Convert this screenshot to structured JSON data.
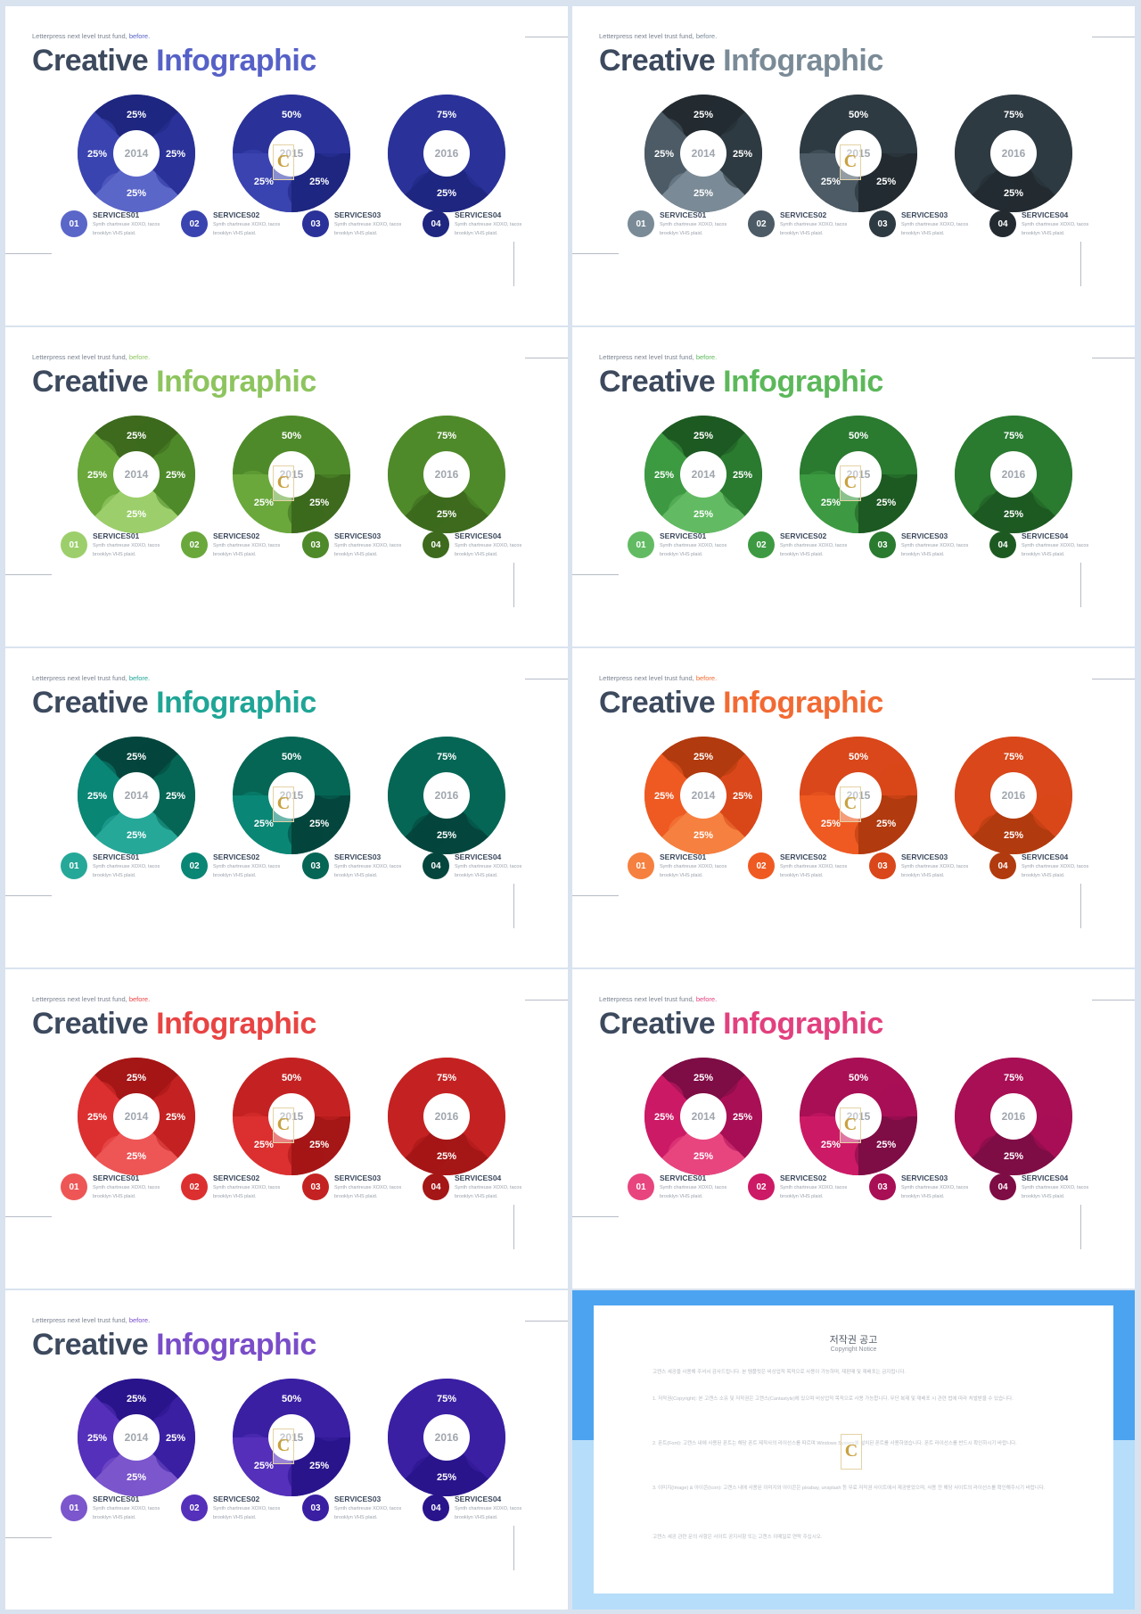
{
  "slide_common": {
    "subtitle_main": "Letterpress next level trust fund, ",
    "subtitle_accent": "before.",
    "title_main": "Creative ",
    "title_accent": "Infographic",
    "donuts": [
      {
        "year": "2014",
        "labels": [
          "25%",
          "25%",
          "25%",
          "25%"
        ],
        "segments": [
          0.25,
          0.25,
          0.25,
          0.25
        ]
      },
      {
        "year": "2015",
        "labels": [
          "50%",
          "25%",
          "25%"
        ],
        "segments": [
          0.5,
          0.25,
          0.25
        ]
      },
      {
        "year": "2016",
        "labels": [
          "75%",
          "25%"
        ],
        "segments": [
          0.75,
          0.25
        ]
      }
    ],
    "services": [
      {
        "num": "01",
        "title": "SERVICES01",
        "desc": "Synth chartreuse XOXO, tacos brooklyn VHS plaid."
      },
      {
        "num": "02",
        "title": "SERVICES02",
        "desc": "Synth chartreuse XOXO, tacos brooklyn VHS plaid."
      },
      {
        "num": "03",
        "title": "SERVICES03",
        "desc": "Synth chartreuse XOXO, tacos brooklyn VHS plaid."
      },
      {
        "num": "04",
        "title": "SERVICES04",
        "desc": "Synth chartreuse XOXO, tacos brooklyn VHS plaid."
      }
    ],
    "watermark": "C"
  },
  "slides": [
    {
      "accent": "#5661c7",
      "shades": [
        "#1e2680",
        "#2a3299",
        "#3a44b0",
        "#5b66c9"
      ]
    },
    {
      "accent": "#7a8b97",
      "shades": [
        "#232b31",
        "#2e3a42",
        "#4c5b66",
        "#7a8b97"
      ]
    },
    {
      "accent": "#8dc45e",
      "shades": [
        "#3d6a1d",
        "#4f8a2a",
        "#6aa83c",
        "#9ccf6b"
      ]
    },
    {
      "accent": "#5cb85a",
      "shades": [
        "#1d5a22",
        "#2a7a30",
        "#3d9a42",
        "#62bb63"
      ]
    },
    {
      "accent": "#1fa596",
      "shades": [
        "#04463d",
        "#066655",
        "#0a8675",
        "#26a899"
      ]
    },
    {
      "accent": "#f26a33",
      "shades": [
        "#b13a0e",
        "#d9471a",
        "#ef5a22",
        "#f6803f"
      ]
    },
    {
      "accent": "#e84443",
      "shades": [
        "#a51616",
        "#c42222",
        "#dc3030",
        "#ee5656"
      ]
    },
    {
      "accent": "#e2407e",
      "shades": [
        "#7e0c45",
        "#a80f55",
        "#cc1a66",
        "#e8457f"
      ]
    },
    {
      "accent": "#7a4dc9",
      "shades": [
        "#2a148c",
        "#3a1fa3",
        "#5530ba",
        "#7b56cc"
      ]
    }
  ],
  "notice": {
    "title": "저작권 공고",
    "subtitle": "Copyright Notice",
    "paragraphs": [
      "고캔스 세공을 사용해 주셔서 감사드립니다. 본 템플릿은 비상업적 목적으로 사용이 가능하며, 재판매 및 재배포는 금지됩니다.",
      "1. 저작권(Copyright): 본 고캔스 소유 및 저작권은 고캔스(Cantastyle)에 있으며 비상업적 목적으로 사용 가능합니다. 무단 복제 및 재배포 시 관련 법에 따라 처벌받을 수 있습니다.",
      "2. 폰트(Font): 고캔스 내에 사용된 폰트는 해당 폰트 제작사의 라이선스를 따르며 Windows System에 설치된 폰트를 사용하였습니다. 폰트 라이선스를 반드시 확인하시기 바랍니다.",
      "3. 이미지(Image) & 아이콘(Icon): 고캔스 내에 사용된 이미지와 아이콘은 pixabay, unsplash 등 무료 저작권 사이트에서 제공받았으며, 사용 전 해당 사이트의 라이선스를 확인해주시기 바랍니다.",
      "고캔스 세공 관련 문의 사항은 사이트 공지사항 또는 고캔스 이메일로 연락 주십시오."
    ]
  }
}
